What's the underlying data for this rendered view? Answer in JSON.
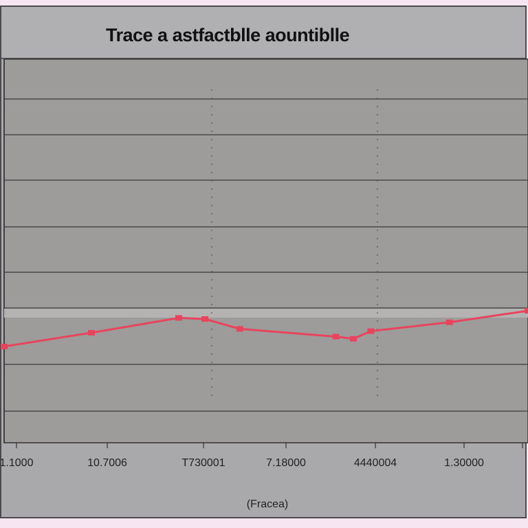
{
  "chart_data": {
    "type": "line",
    "title": "Trace a astfactblle aountiblle",
    "xlabel": "(Fracea)",
    "ylabel": "",
    "x_tick_labels": [
      "1.1000",
      "10.7006",
      "T730001",
      "7.18000",
      "4440004",
      "1.30000",
      ""
    ],
    "grid": true,
    "legend": "none",
    "series": [
      {
        "color": "#e8445e",
        "points": [
          {
            "x": 0.0,
            "y": 0.2
          },
          {
            "x": 0.5,
            "y": 0.45
          },
          {
            "x": 1.0,
            "y": 0.72
          },
          {
            "x": 1.15,
            "y": 0.7
          },
          {
            "x": 1.35,
            "y": 0.52
          },
          {
            "x": 1.9,
            "y": 0.38
          },
          {
            "x": 2.0,
            "y": 0.34
          },
          {
            "x": 2.1,
            "y": 0.48
          },
          {
            "x": 2.55,
            "y": 0.64
          },
          {
            "x": 3.0,
            "y": 0.85
          }
        ]
      }
    ],
    "xlim": [
      0,
      3
    ],
    "ylim": [
      0,
      1
    ]
  }
}
